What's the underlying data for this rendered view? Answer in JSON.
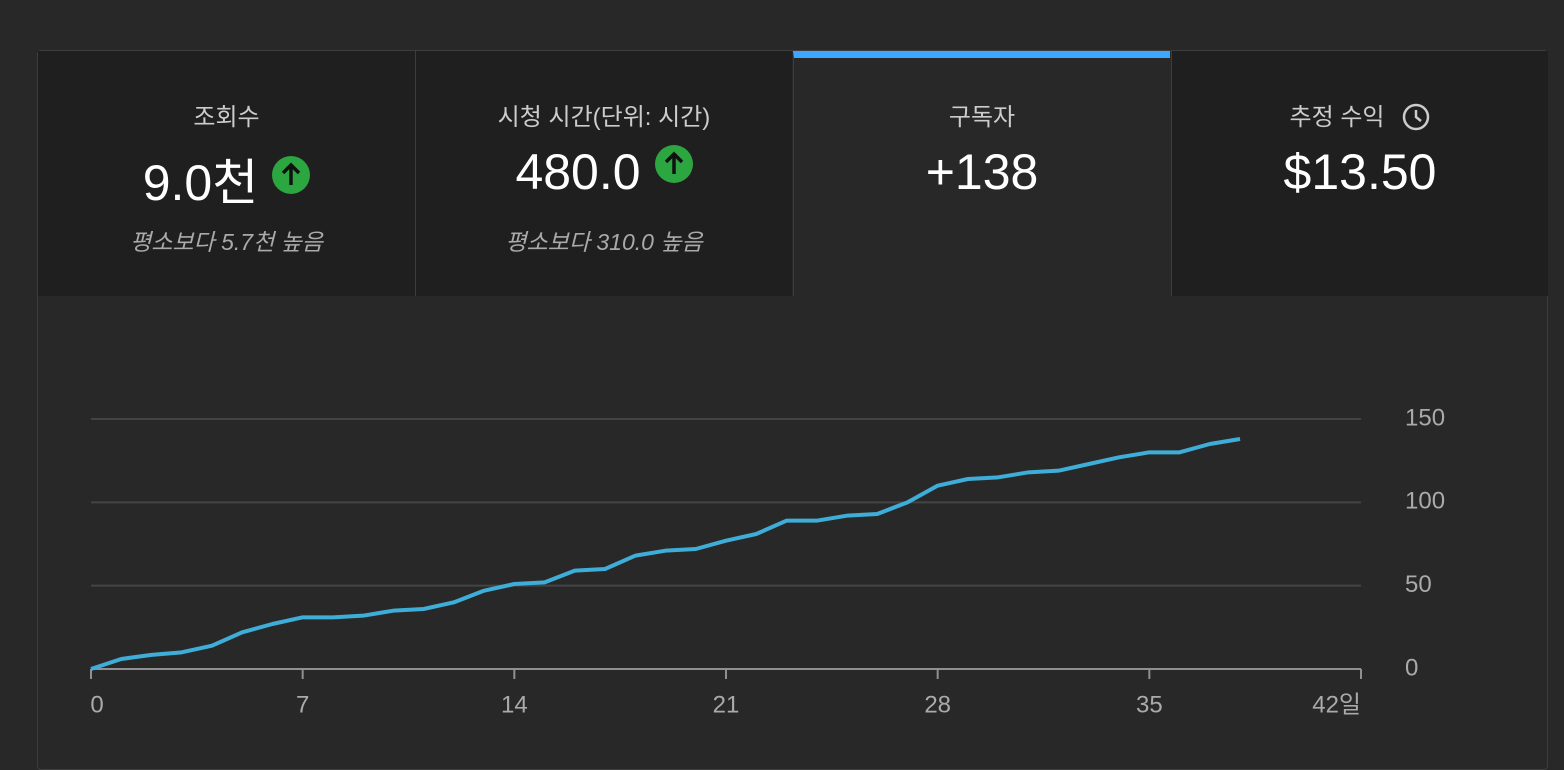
{
  "tabs": [
    {
      "label": "조회수",
      "value": "9.0천",
      "comparison": "평소보다 5.7천 높음"
    },
    {
      "label": "시청 시간(단위: 시간)",
      "value": "480.0",
      "comparison": "평소보다 310.0 높음"
    },
    {
      "label": "구독자",
      "value": "+138"
    },
    {
      "label": "추정 수익",
      "value": "$13.50"
    }
  ],
  "chart_data": {
    "type": "line",
    "x": [
      0,
      1,
      2,
      3,
      4,
      5,
      6,
      7,
      8,
      9,
      10,
      11,
      12,
      13,
      14,
      15,
      16,
      17,
      18,
      19,
      20,
      21,
      22,
      23,
      24,
      25,
      26,
      27,
      28,
      29,
      30,
      31,
      32,
      33,
      34,
      35,
      36,
      37,
      38
    ],
    "values": [
      0,
      6,
      8.5,
      10,
      14,
      22,
      27,
      31,
      31,
      32,
      35,
      36,
      40,
      47,
      51,
      52,
      59,
      60,
      68,
      71,
      72,
      77,
      81,
      89,
      89,
      92,
      93,
      100,
      110,
      114,
      115,
      118,
      119,
      123,
      127,
      130,
      130,
      135,
      138
    ],
    "color": "#3eaed8",
    "xlim": [
      0,
      42
    ],
    "xticks": [
      0,
      7,
      14,
      21,
      28,
      35,
      {
        "value": 42,
        "label": "42일"
      }
    ],
    "ylim": [
      0,
      150
    ],
    "yticks": [
      0,
      50,
      100,
      150
    ],
    "grid": true
  }
}
